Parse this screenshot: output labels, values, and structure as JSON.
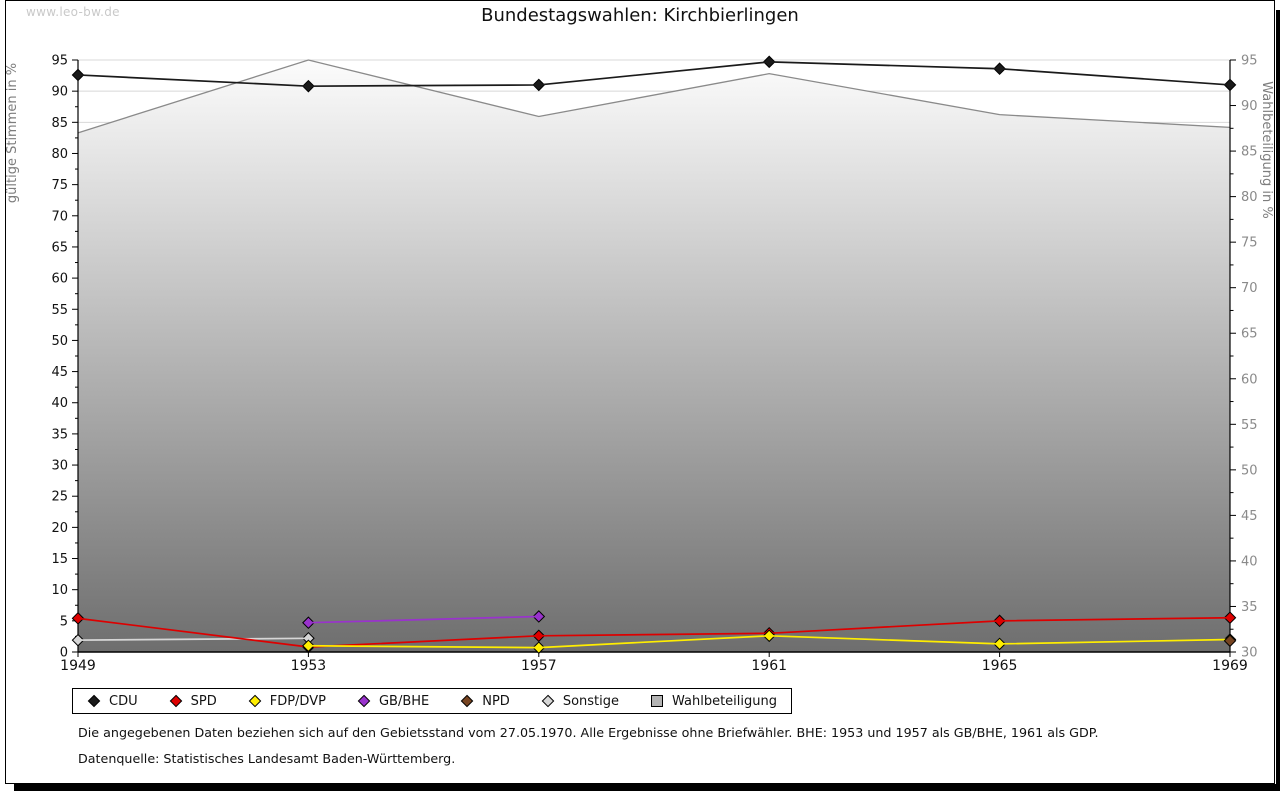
{
  "page": {
    "watermark": "www.leo-bw.de",
    "title": "Bundestagswahlen: Kirchbierlingen",
    "footnotes": [
      "Die angegebenen Daten beziehen sich auf den Gebietsstand vom 27.05.1970. Alle Ergebnisse ohne Briefwähler. BHE: 1953 und 1957 als GB/BHE, 1961 als GDP.",
      "Datenquelle: Statistisches Landesamt Baden-Württemberg."
    ]
  },
  "chart_data": {
    "type": "line",
    "title": "Bundestagswahlen: Kirchbierlingen",
    "x": [
      1949,
      1953,
      1957,
      1961,
      1965,
      1969
    ],
    "left_axis": {
      "label": "gültige Stimmen in %",
      "min": 0,
      "max": 95,
      "tick_step": 5,
      "minor_step": 2.5
    },
    "right_axis": {
      "label": "Wahlbeteiligung in %",
      "min": 30,
      "max": 95,
      "tick_step": 5,
      "minor_step": 2.5
    },
    "grid": true,
    "legend_position": "bottom",
    "colors": {
      "grid": "#d8d8d8",
      "axis": "#000000",
      "left_tick_text": "#111111",
      "right_tick_text": "#8a8a8a",
      "axis_title_text": "#7d7d7d",
      "area_gradient_top": "#fcfcfc",
      "area_gradient_bottom": "#6e6e6e"
    },
    "series": [
      {
        "name": "CDU",
        "axis": "left",
        "marker": "diamond",
        "color": "#1a1a1a",
        "values": [
          92.6,
          90.8,
          91.0,
          94.7,
          93.6,
          91.0
        ]
      },
      {
        "name": "SPD",
        "axis": "left",
        "marker": "diamond",
        "color": "#dd0000",
        "values": [
          5.4,
          0.8,
          2.6,
          3.0,
          5.0,
          5.5
        ]
      },
      {
        "name": "FDP/DVP",
        "axis": "left",
        "marker": "diamond",
        "color": "#ffee00",
        "values": [
          null,
          1.0,
          0.7,
          2.6,
          1.3,
          2.0
        ]
      },
      {
        "name": "GB/BHE",
        "axis": "left",
        "marker": "diamond",
        "color": "#9933cc",
        "values": [
          null,
          4.7,
          5.7,
          null,
          null,
          null
        ]
      },
      {
        "name": "NPD",
        "axis": "left",
        "marker": "diamond",
        "color": "#774421",
        "values": [
          null,
          null,
          null,
          null,
          null,
          1.8
        ]
      },
      {
        "name": "Sonstige",
        "axis": "left",
        "marker": "diamond",
        "color": "#d6d6d6",
        "values": [
          1.9,
          2.2,
          null,
          null,
          null,
          null
        ]
      },
      {
        "name": "Wahlbeteiligung",
        "axis": "right",
        "marker": "square",
        "type": "area",
        "color": "#8a8a8a",
        "legend_swatch": "#b3b3b3",
        "values": [
          87.0,
          95.0,
          88.8,
          93.5,
          89.0,
          87.6
        ]
      }
    ]
  }
}
